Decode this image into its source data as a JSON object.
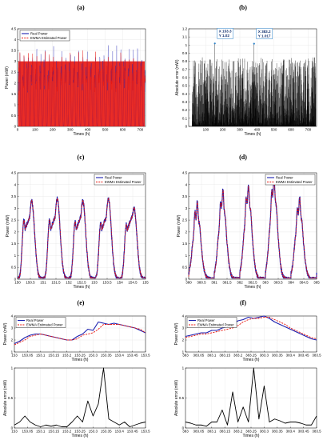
{
  "colors": {
    "real": "#1b1fb0",
    "ewma": "#e8150e",
    "error": "#000000",
    "axis": "#000000",
    "grid": "#e6e6e6",
    "tip_bg": "#ffffff",
    "tip_border": "#2a80c8",
    "tip_text": "#0d2b6b"
  },
  "chart_data": [
    {
      "id": "a",
      "panel_label": "(a)",
      "type": "line",
      "xlabel": "Times (h)",
      "ylabel": "Power (mW)",
      "xlim": [
        0,
        730
      ],
      "ylim": [
        0,
        4.5
      ],
      "xticks": [
        "0",
        "100",
        "200",
        "300",
        "400",
        "500",
        "600",
        "700"
      ],
      "yticks": [
        "0",
        "0.5",
        "1",
        "1.5",
        "2",
        "2.5",
        "3",
        "3.5",
        "4",
        "4.5"
      ],
      "legend_position": "top-left",
      "series": [
        {
          "name": "Real Power",
          "description": "daily cycle 0 to ~3 mW, peaks up to ~4 mW over 730 h"
        },
        {
          "name": "EWMA Estimated Power",
          "description": "tracks real power, 0 to ~3.5 mW"
        }
      ]
    },
    {
      "id": "b",
      "panel_label": "(b)",
      "type": "line",
      "xlabel": "Times (h)",
      "ylabel": "Absolute error (mW)",
      "xlim": [
        0,
        750
      ],
      "ylim": [
        0,
        1.2
      ],
      "xticks": [
        "100",
        "200",
        "300",
        "400",
        "500",
        "600",
        "700"
      ],
      "yticks": [
        "0",
        "0.1",
        "0.2",
        "0.3",
        "0.4",
        "0.5",
        "0.6",
        "0.7",
        "0.8",
        "0.9",
        "1",
        "1.1",
        "1.2"
      ],
      "datatips": [
        {
          "x_text": "X 153.3",
          "y_text": "Y 1.02",
          "x": 153.3,
          "y": 1.02
        },
        {
          "x_text": "X 383.2",
          "y_text": "Y 1.017",
          "x": 383.2,
          "y": 1.017
        }
      ]
    },
    {
      "id": "c",
      "panel_label": "(c)",
      "type": "line",
      "xlabel": "Times (h)",
      "ylabel": "Power (mW)",
      "xlim": [
        150,
        155
      ],
      "ylim": [
        0,
        4.5
      ],
      "xticks": [
        "150",
        "150.5",
        "151",
        "151.5",
        "152",
        "152.5",
        "153",
        "153.5",
        "154",
        "154.5",
        "155"
      ],
      "yticks": [
        "0",
        "0.5",
        "1",
        "1.5",
        "2",
        "2.5",
        "3",
        "3.5",
        "4",
        "4.5"
      ],
      "legend_position": "top-right",
      "series": [
        {
          "name": "Real Power",
          "peaks": [
            {
              "x": 150.25,
              "y": 2.5
            },
            {
              "x": 150.55,
              "y": 3.3
            },
            {
              "x": 151.25,
              "y": 2.5
            },
            {
              "x": 151.55,
              "y": 3.4
            },
            {
              "x": 152.25,
              "y": 2.4
            },
            {
              "x": 152.55,
              "y": 3.3
            },
            {
              "x": 153.25,
              "y": 2.4
            },
            {
              "x": 153.55,
              "y": 3.4
            },
            {
              "x": 154.25,
              "y": 2.3
            },
            {
              "x": 154.55,
              "y": 3.0
            }
          ]
        },
        {
          "name": "EWMA Estimated Power"
        }
      ]
    },
    {
      "id": "d",
      "panel_label": "(d)",
      "type": "line",
      "xlabel": "Times (h)",
      "ylabel": "Power (mW)",
      "xlim": [
        380,
        385
      ],
      "ylim": [
        0,
        4.5
      ],
      "xticks": [
        "380",
        "380.5",
        "381",
        "381.5",
        "382",
        "382.5",
        "383",
        "383.5",
        "384",
        "384.5",
        "385"
      ],
      "yticks": [
        "0",
        "0.5",
        "1",
        "1.5",
        "2",
        "2.5",
        "3",
        "3.5",
        "4",
        "4.5"
      ],
      "legend_position": "top-right",
      "series": [
        {
          "name": "Real Power",
          "peaks": [
            {
              "x": 380.3,
              "y": 3.0
            },
            {
              "x": 381.3,
              "y": 3.5
            },
            {
              "x": 382.3,
              "y": 3.7
            },
            {
              "x": 383.3,
              "y": 4.0
            },
            {
              "x": 384.3,
              "y": 3.2
            }
          ]
        },
        {
          "name": "EWMA Estimated Power"
        }
      ]
    },
    {
      "id": "e",
      "panel_label": "(e)",
      "type": "line",
      "upper": {
        "xlabel": "Times (h)",
        "ylabel": "Power (mW)",
        "xlim": [
          153,
          153.5
        ],
        "ylim": [
          1,
          4
        ],
        "xticks": [
          "153",
          "153.05",
          "153.1",
          "153.15",
          "153.2",
          "153.25",
          "153.3",
          "153.35",
          "153.4",
          "153.45",
          "153.5"
        ],
        "yticks": [
          "1",
          "2",
          "3",
          "4"
        ],
        "legend_position": "top-left",
        "x": [
          153.0,
          153.02,
          153.04,
          153.06,
          153.08,
          153.1,
          153.12,
          153.14,
          153.16,
          153.18,
          153.2,
          153.22,
          153.24,
          153.26,
          153.28,
          153.3,
          153.32,
          153.34,
          153.36,
          153.38,
          153.4,
          153.42,
          153.44,
          153.46,
          153.48,
          153.5
        ],
        "series": [
          {
            "name": "Real Power",
            "values": [
              1.7,
              1.9,
              2.2,
              2.4,
              2.5,
              2.5,
              2.4,
              2.3,
              2.2,
              2.1,
              2.0,
              2.0,
              2.3,
              2.5,
              2.9,
              2.8,
              3.5,
              3.4,
              3.3,
              3.4,
              3.3,
              3.2,
              3.1,
              3.0,
              2.8,
              2.6
            ]
          },
          {
            "name": "EWMA Estimated Power",
            "values": [
              1.6,
              1.8,
              2.0,
              2.3,
              2.4,
              2.5,
              2.4,
              2.3,
              2.2,
              2.1,
              2.0,
              2.0,
              2.1,
              2.4,
              2.5,
              2.6,
              2.9,
              3.3,
              3.3,
              3.3,
              3.3,
              3.2,
              3.1,
              3.0,
              2.9,
              2.6
            ]
          }
        ]
      },
      "lower": {
        "xlabel": "Times (h)",
        "ylabel": "Absolute error (mW)",
        "xlim": [
          153,
          153.5
        ],
        "ylim": [
          0,
          1
        ],
        "xticks": [
          "153",
          "153.05",
          "153.1",
          "153.15",
          "153.2",
          "153.25",
          "153.3",
          "153.35",
          "153.4",
          "153.45",
          "153.5"
        ],
        "yticks": [
          "0",
          "0.5",
          "1"
        ],
        "x": [
          153.0,
          153.02,
          153.04,
          153.06,
          153.08,
          153.1,
          153.12,
          153.14,
          153.16,
          153.18,
          153.2,
          153.22,
          153.24,
          153.26,
          153.28,
          153.3,
          153.32,
          153.34,
          153.36,
          153.38,
          153.4,
          153.42,
          153.44,
          153.46,
          153.48,
          153.5
        ],
        "values": [
          0.05,
          0.1,
          0.2,
          0.1,
          0.05,
          0.02,
          0.05,
          0.03,
          0.05,
          0.02,
          0.02,
          0.1,
          0.2,
          0.1,
          0.45,
          0.2,
          0.4,
          1.0,
          0.15,
          0.1,
          0.05,
          0.1,
          0.02,
          0.05,
          0.08,
          0.1
        ]
      }
    },
    {
      "id": "f",
      "panel_label": "(f)",
      "type": "line",
      "upper": {
        "xlabel": "Times (h)",
        "ylabel": "Power (mW)",
        "xlim": [
          383,
          383.5
        ],
        "ylim": [
          1,
          4
        ],
        "xticks": [
          "383",
          "383.05",
          "383.1",
          "383.15",
          "383.2",
          "383.25",
          "383.3",
          "383.35",
          "383.4",
          "383.45",
          "383.5"
        ],
        "yticks": [
          "1",
          "2",
          "3",
          "4"
        ],
        "legend_position": "top-left",
        "x": [
          383.0,
          383.02,
          383.04,
          383.06,
          383.08,
          383.1,
          383.12,
          383.14,
          383.16,
          383.18,
          383.2,
          383.22,
          383.24,
          383.26,
          383.28,
          383.3,
          383.32,
          383.34,
          383.36,
          383.38,
          383.4,
          383.42,
          383.44,
          383.46,
          383.48,
          383.5
        ],
        "series": [
          {
            "name": "Real Power",
            "values": [
              2.3,
              2.4,
              2.5,
              2.6,
              2.6,
              2.8,
              2.8,
              3.0,
              3.1,
              3.3,
              3.6,
              3.7,
              3.9,
              3.8,
              3.9,
              4.0,
              3.8,
              3.5,
              3.3,
              3.1,
              2.9,
              2.7,
              2.5,
              2.3,
              2.1,
              2.0
            ]
          },
          {
            "name": "EWMA Estimated Power",
            "values": [
              2.2,
              2.3,
              2.4,
              2.5,
              2.5,
              2.6,
              2.7,
              2.8,
              2.9,
              3.0,
              3.2,
              3.5,
              3.7,
              3.8,
              3.8,
              3.9,
              3.9,
              3.7,
              3.5,
              3.3,
              3.0,
              2.8,
              2.6,
              2.4,
              2.2,
              2.1
            ]
          }
        ]
      },
      "lower": {
        "xlabel": "Times (h)",
        "ylabel": "Absolute error (mW)",
        "xlim": [
          383,
          383.5
        ],
        "ylim": [
          0,
          1
        ],
        "xticks": [
          "383",
          "383.05",
          "383.1",
          "383.15",
          "383.2",
          "383.25",
          "383.3",
          "383.35",
          "383.4",
          "383.45",
          "383.5"
        ],
        "yticks": [
          "0",
          "0.5",
          "1"
        ],
        "x": [
          383.0,
          383.02,
          383.04,
          383.06,
          383.08,
          383.1,
          383.12,
          383.14,
          383.16,
          383.18,
          383.2,
          383.22,
          383.24,
          383.26,
          383.28,
          383.3,
          383.32,
          383.34,
          383.36,
          383.38,
          383.4,
          383.42,
          383.44,
          383.46,
          383.48,
          383.5
        ],
        "values": [
          0.1,
          0.08,
          0.05,
          0.05,
          0.03,
          0.1,
          0.1,
          0.3,
          0.05,
          0.6,
          0.1,
          0.35,
          0.1,
          1.0,
          0.15,
          0.7,
          0.1,
          0.15,
          0.12,
          0.08,
          0.1,
          0.1,
          0.08,
          0.05,
          0.05,
          0.2
        ]
      }
    }
  ]
}
